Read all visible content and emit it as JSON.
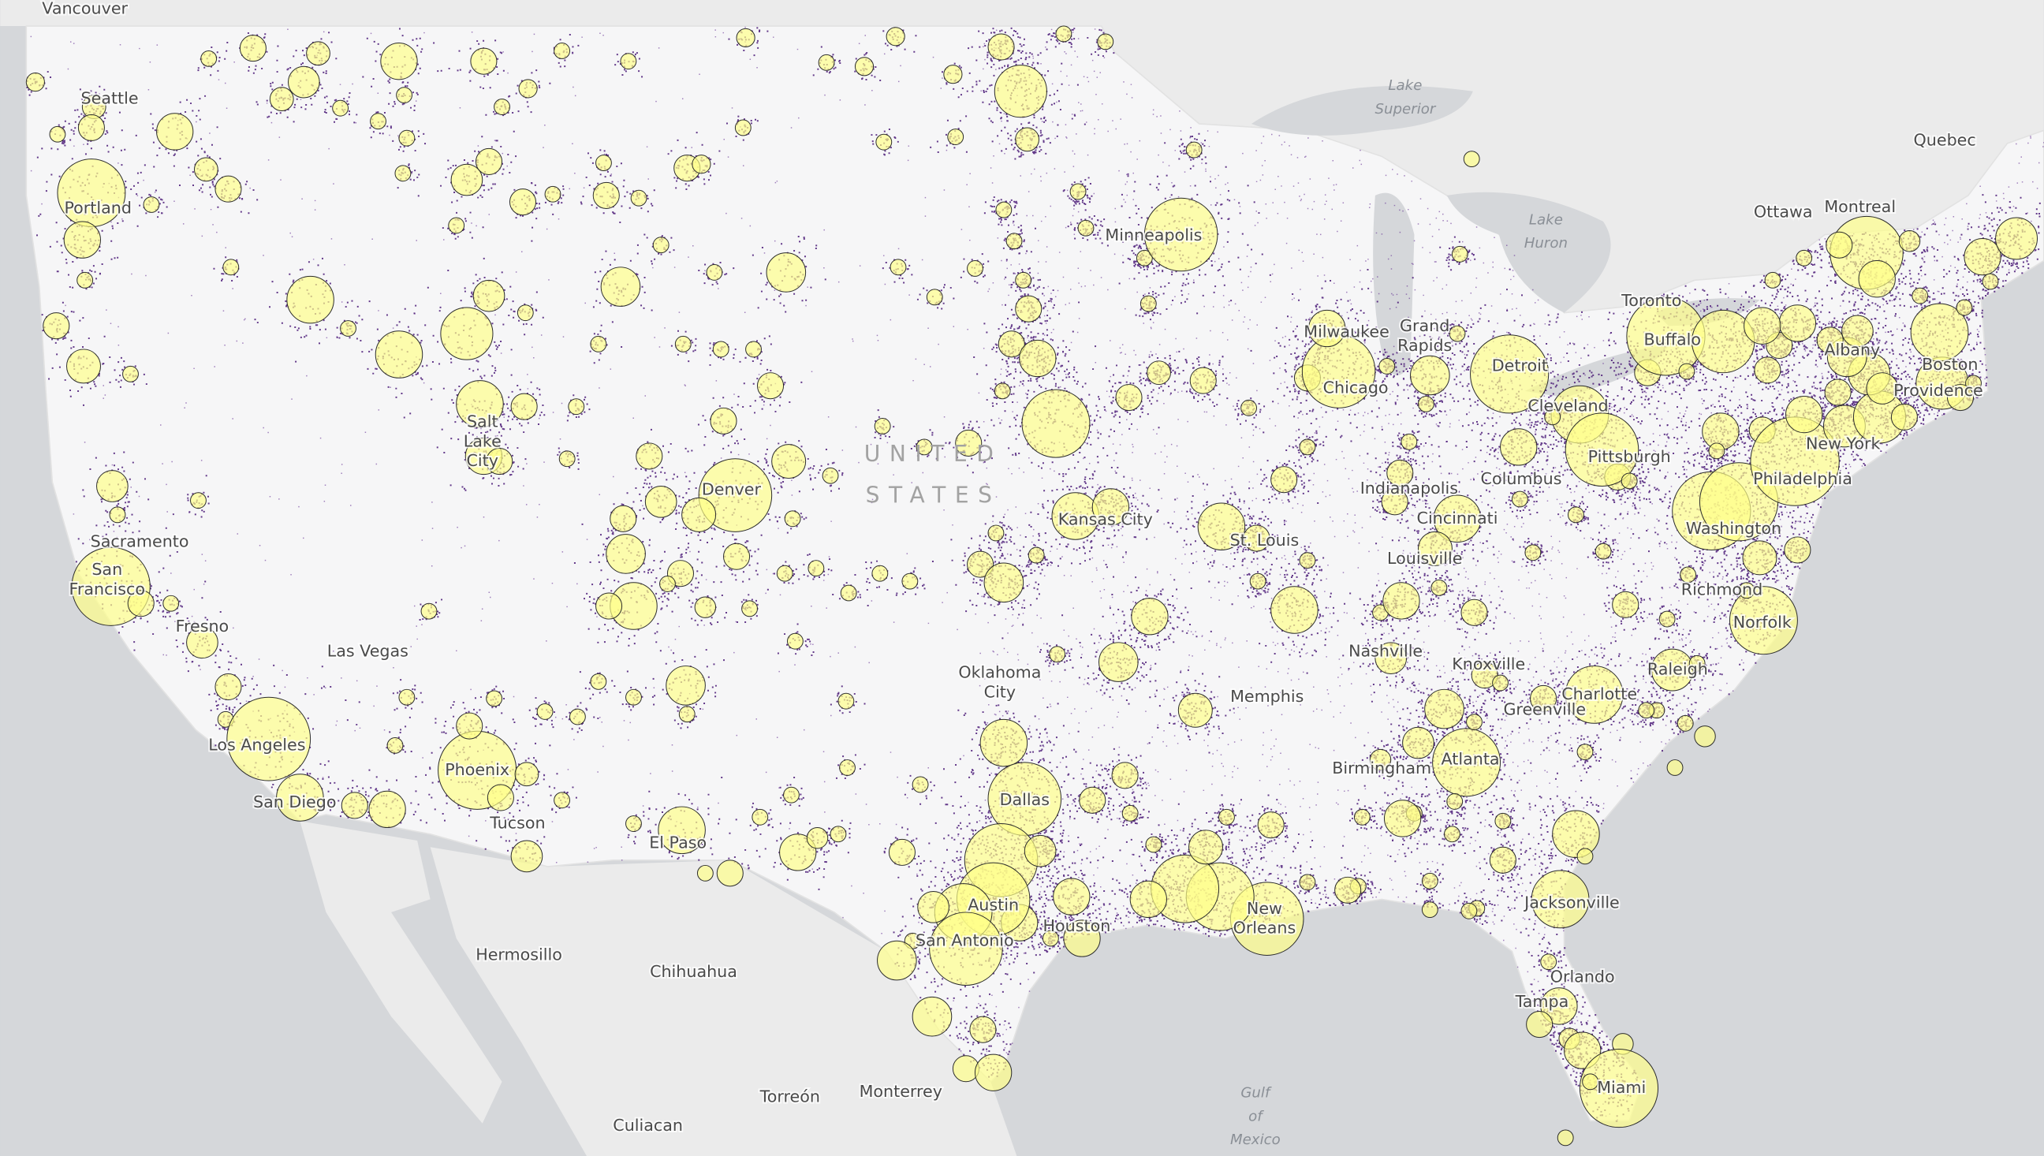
{
  "map": {
    "country": "UNITED STATES",
    "places": [
      "Vancouver",
      "Seattle",
      "Portland",
      "Sacramento",
      "San Francisco",
      "Fresno",
      "Las Vegas",
      "Los Angeles",
      "San Diego",
      "Phoenix",
      "Tucson",
      "El Paso",
      "Denver",
      "Salt Lake City",
      "Minneapolis",
      "Kansas City",
      "Oklahoma City",
      "Dallas",
      "Austin",
      "San Antonio",
      "Houston",
      "New Orleans",
      "Memphis",
      "St. Louis",
      "Chicago",
      "Milwaukee",
      "Grand Rapids",
      "Detroit",
      "Indianapolis",
      "Cincinnati",
      "Louisville",
      "Nashville",
      "Knoxville",
      "Columbus",
      "Cleveland",
      "Pittsburgh",
      "Birmingham",
      "Atlanta",
      "Greenville",
      "Charlotte",
      "Raleigh",
      "Richmond",
      "Norfolk",
      "Washington",
      "Philadelphia",
      "New York",
      "Providence",
      "Boston",
      "Albany",
      "Buffalo",
      "Toronto",
      "Ottawa",
      "Montreal",
      "Quebec",
      "Jacksonville",
      "Orlando",
      "Tampa",
      "Miami",
      "Hermosillo",
      "Chihuahua",
      "Torreón",
      "Monterrey",
      "Culiacan"
    ],
    "water": [
      "Lake Superior",
      "Lake Huron",
      "Gulf of Mexico"
    ]
  }
}
